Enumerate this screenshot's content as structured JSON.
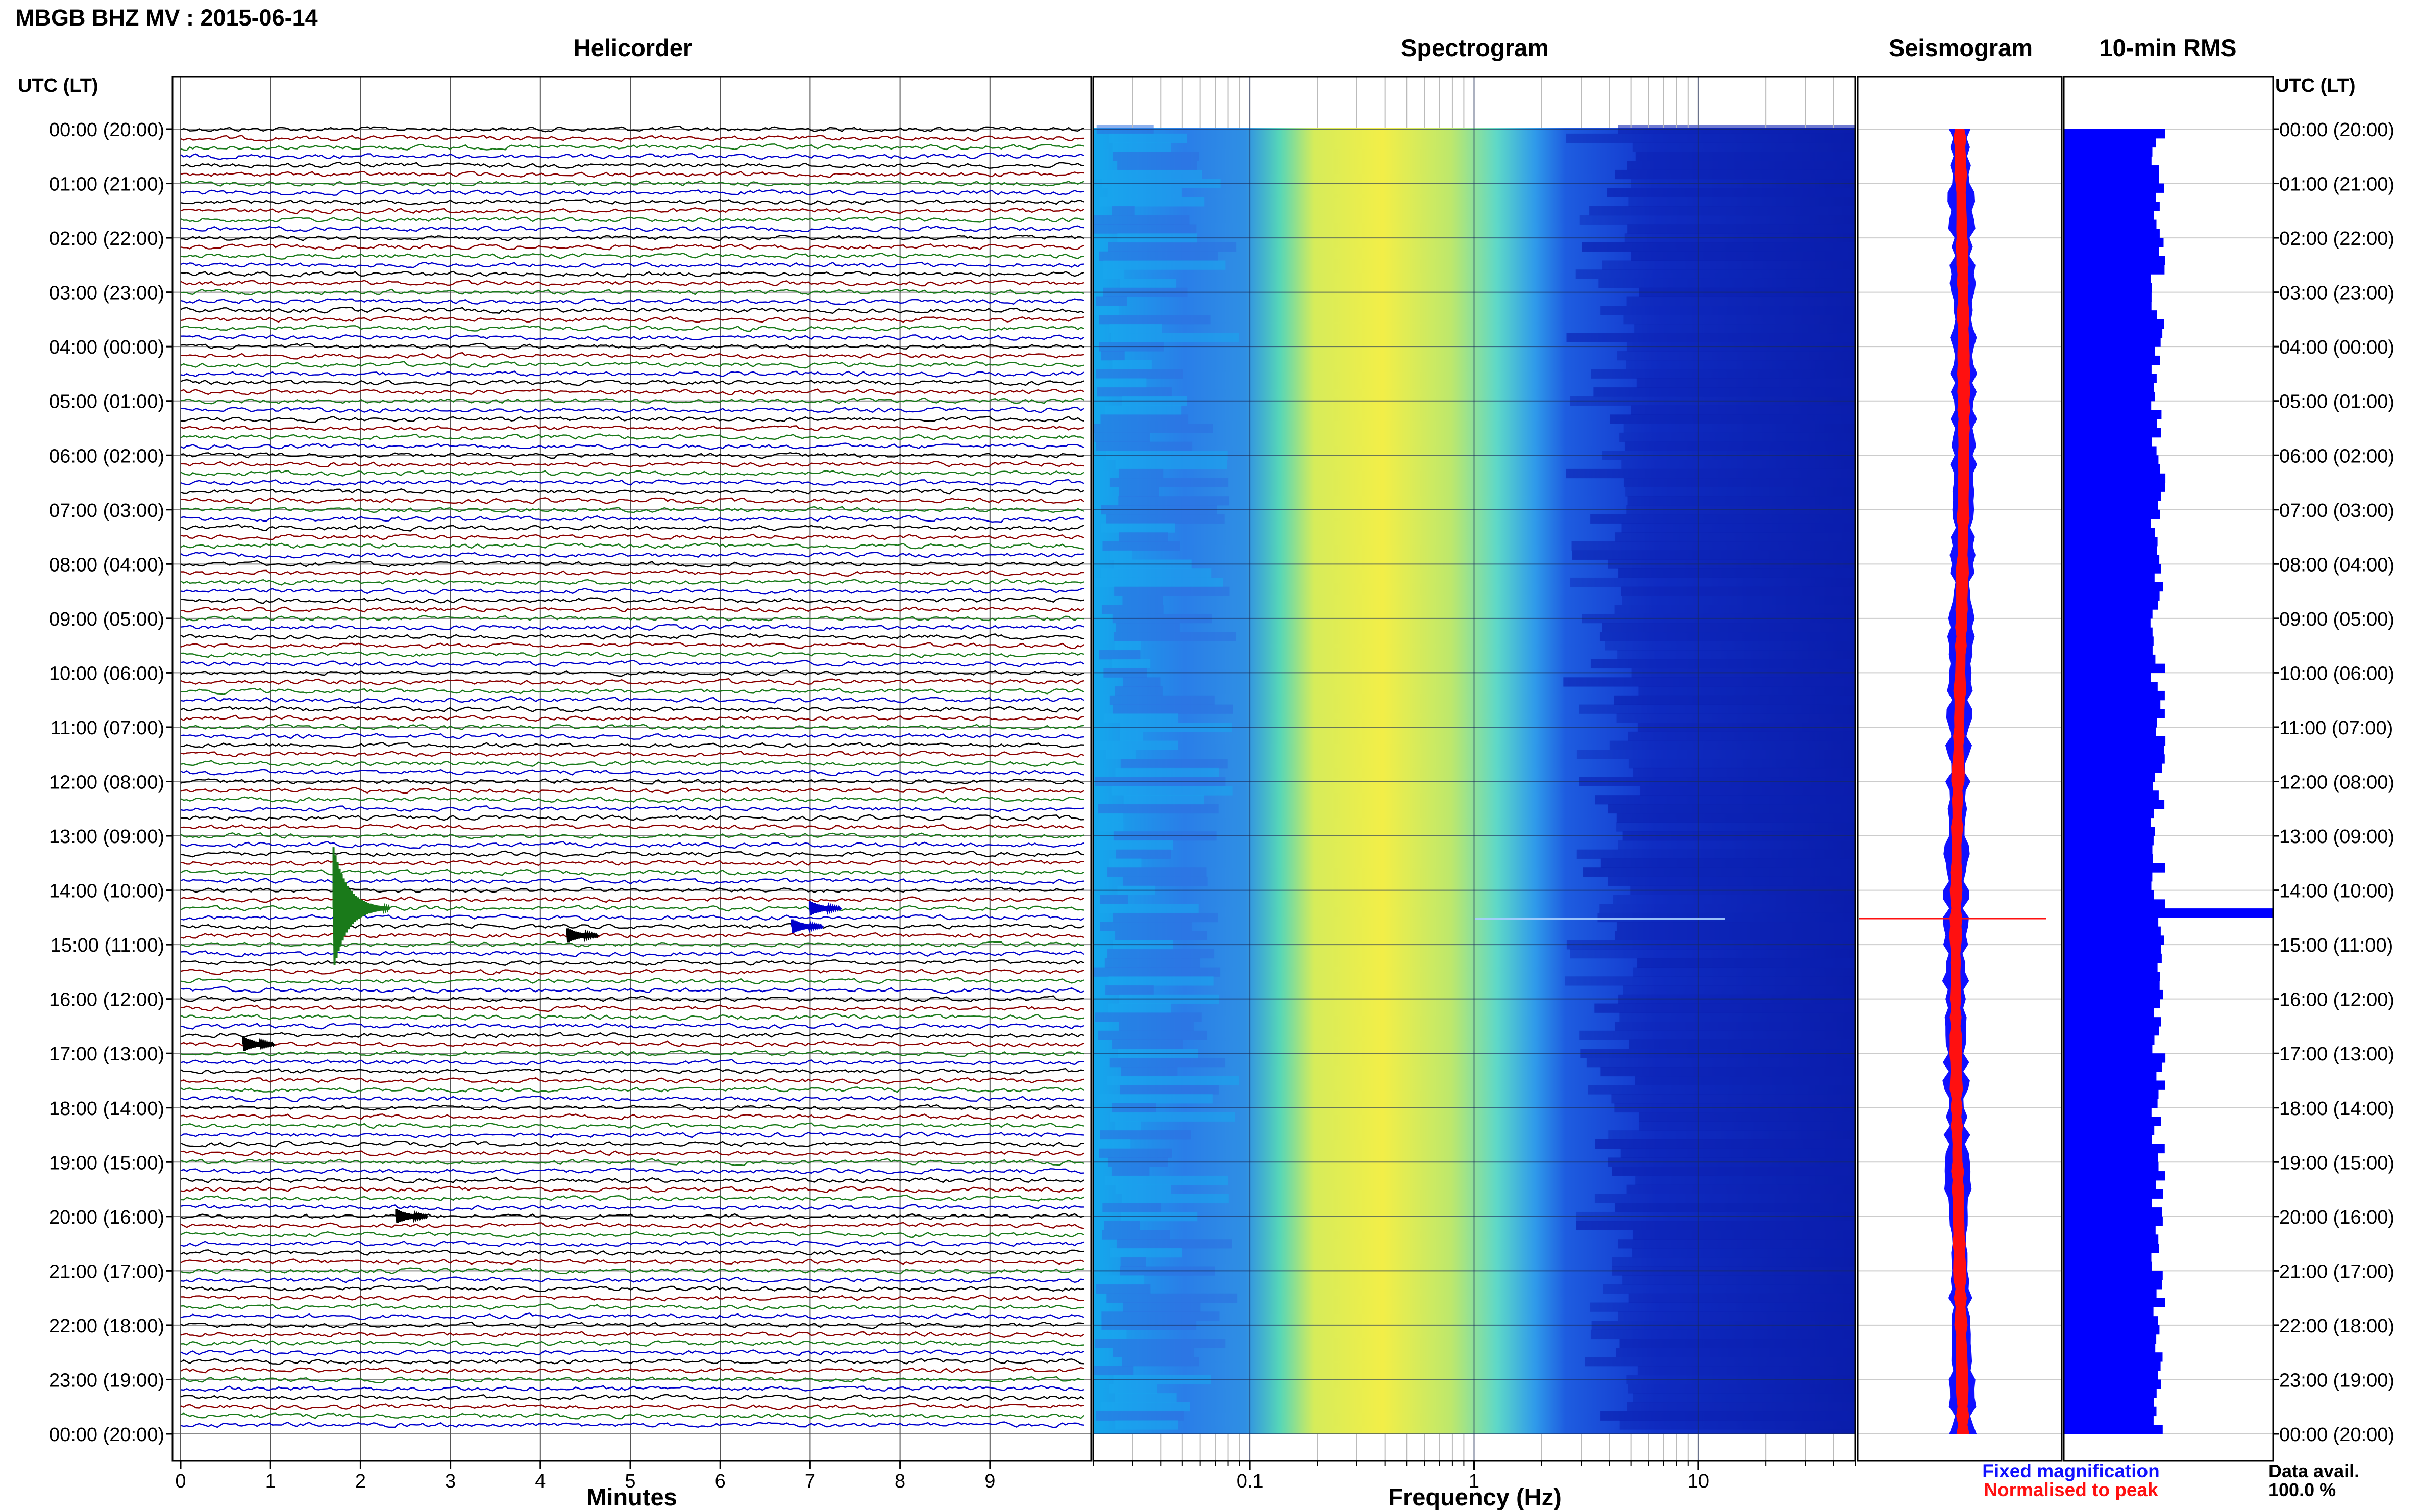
{
  "header": {
    "title": "MBGB BHZ MV : 2015-06-14"
  },
  "panels": {
    "helicorder": "Helicorder",
    "spectrogram": "Spectrogram",
    "seismogram": "Seismogram",
    "rms": "10-min RMS"
  },
  "axis": {
    "time_label_left": "UTC (LT)",
    "time_label_right": "UTC (LT)",
    "minutes_label": "Minutes",
    "frequency_label": "Frequency (Hz)"
  },
  "legend": {
    "fixed": "Fixed magnification",
    "normalised": "Normalised to peak",
    "fixed_color": "#1010ff",
    "normalised_color": "#ff1010"
  },
  "data_availability": {
    "label": "Data avail.",
    "value": "100.0 %"
  },
  "colors": {
    "trace_cycle": [
      "#000000",
      "#8b0000",
      "#1a7a1a",
      "#0000cc"
    ],
    "rms_bar": "#0000ff",
    "spectrogram_low": "#00008b",
    "spectrogram_high": "#ffff00"
  },
  "chart_data": [
    {
      "type": "line",
      "name": "helicorder",
      "xlabel": "Minutes",
      "xlim": [
        0,
        10
      ],
      "x_ticks": [
        0,
        1,
        2,
        3,
        4,
        5,
        6,
        7,
        8,
        9
      ],
      "row_minutes": 10,
      "rows": 144,
      "y_ticks": [
        "00:00 (20:00)",
        "01:00 (21:00)",
        "02:00 (22:00)",
        "03:00 (23:00)",
        "04:00 (00:00)",
        "05:00 (01:00)",
        "06:00 (02:00)",
        "07:00 (03:00)",
        "08:00 (04:00)",
        "09:00 (05:00)",
        "10:00 (06:00)",
        "11:00 (07:00)",
        "12:00 (08:00)",
        "13:00 (09:00)",
        "14:00 (10:00)",
        "15:00 (11:00)",
        "16:00 (12:00)",
        "17:00 (13:00)",
        "18:00 (14:00)",
        "19:00 (15:00)",
        "20:00 (16:00)",
        "21:00 (17:00)",
        "22:00 (18:00)",
        "23:00 (19:00)",
        "00:00 (20:00)"
      ],
      "events": [
        {
          "utc": "14:20",
          "minute": 1.7,
          "amplitude": "large"
        },
        {
          "utc": "14:20",
          "minute": 7.0,
          "amplitude": "small"
        },
        {
          "utc": "14:40",
          "minute": 6.8,
          "amplitude": "small"
        },
        {
          "utc": "14:50",
          "minute": 4.3,
          "amplitude": "small"
        },
        {
          "utc": "16:50",
          "minute": 0.7,
          "amplitude": "small"
        },
        {
          "utc": "20:00",
          "minute": 2.4,
          "amplitude": "small"
        }
      ]
    },
    {
      "type": "heatmap",
      "name": "spectrogram",
      "xlabel": "Frequency (Hz)",
      "xscale": "log",
      "xlim": [
        0.02,
        50
      ],
      "x_ticks": [
        "0.1",
        "1",
        "10"
      ],
      "peak_band_hz": [
        0.2,
        1.0
      ],
      "transient_utc": "14:20"
    },
    {
      "type": "bar",
      "name": "10-min RMS",
      "orientation": "horizontal",
      "rows": 144,
      "typical_relative_amplitude": 0.45,
      "spike": {
        "utc": "14:20",
        "relative_amplitude": 1.0
      }
    }
  ]
}
